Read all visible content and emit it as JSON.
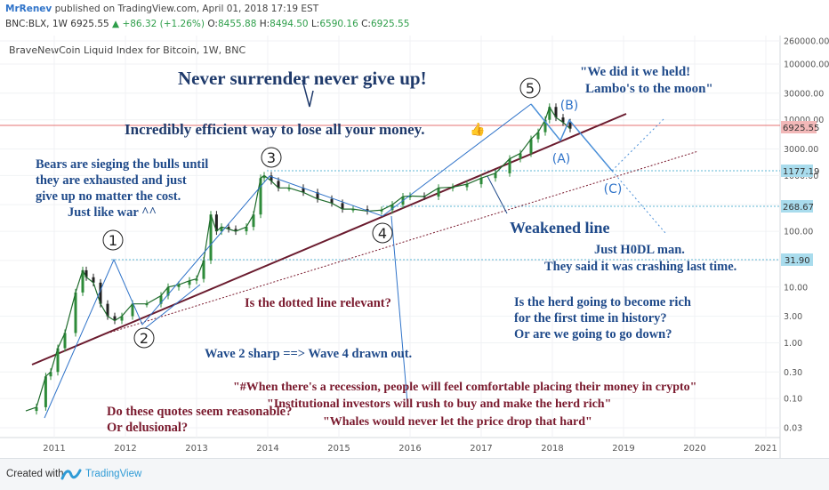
{
  "header": {
    "author": "MrRenev",
    "published_text": "published on TradingView.com, April 01, 2018 17:19 EST",
    "ticker_line": {
      "symbol": "BNC:BLX, 1W",
      "price": "6925.55",
      "change": "+86.32 (+1.26%)",
      "o_label": "O:",
      "o": "8455.88",
      "h_label": "H:",
      "h": "8494.50",
      "l_label": "L:",
      "l": "6590.16",
      "c_label": "C:",
      "c": "6925.55"
    }
  },
  "chart_data": {
    "type": "line",
    "title": "BraveNewCoin Liquid Index for Bitcoin, 1W, BNC",
    "yscale": "log",
    "ylim": [
      0.02,
      260000
    ],
    "y_ticks": [
      "260000.00",
      "100000.00",
      "30000.00",
      "10000.00",
      "3000.00",
      "1000.00",
      "300.00",
      "100.00",
      "30.00",
      "10.00",
      "3.00",
      "1.00",
      "0.30",
      "0.10",
      "0.03"
    ],
    "x_ticks": [
      "2011",
      "2012",
      "2013",
      "2014",
      "2015",
      "2016",
      "2017",
      "2018",
      "2019",
      "2020",
      "2021"
    ],
    "xlim": [
      2010.55,
      2021.2
    ],
    "series": [
      {
        "values_x": [
          2010.6,
          2010.75,
          2010.88,
          2010.95,
          2011.05,
          2011.15,
          2011.3,
          2011.4,
          2011.45,
          2011.55,
          2011.65,
          2011.75,
          2011.85,
          2011.95,
          2012.1,
          2012.3,
          2012.5,
          2012.6,
          2012.75,
          2012.9,
          2013.0,
          2013.1,
          2013.2,
          2013.28,
          2013.35,
          2013.45,
          2013.55,
          2013.7,
          2013.8,
          2013.9,
          2013.95,
          2014.05,
          2014.15,
          2014.3,
          2014.5,
          2014.7,
          2014.9,
          2015.05,
          2015.2,
          2015.4,
          2015.6,
          2015.75,
          2015.9,
          2016.0,
          2016.2,
          2016.4,
          2016.6,
          2016.8,
          2017.0,
          2017.2,
          2017.4,
          2017.55,
          2017.7,
          2017.8,
          2017.9,
          2017.96,
          2018.05,
          2018.15,
          2018.25
        ],
        "values_y": [
          0.06,
          0.07,
          0.25,
          0.3,
          0.8,
          1.5,
          8,
          20,
          15,
          12,
          5,
          3,
          2.5,
          3,
          5,
          5,
          7,
          10,
          11,
          13,
          14,
          30,
          200,
          100,
          120,
          110,
          100,
          120,
          200,
          900,
          1000,
          800,
          600,
          600,
          500,
          380,
          320,
          250,
          250,
          230,
          240,
          300,
          420,
          430,
          420,
          600,
          620,
          700,
          900,
          1100,
          2000,
          2500,
          4500,
          6000,
          10000,
          17000,
          11000,
          9000,
          6925
        ]
      }
    ],
    "price_labels": [
      "6925.55",
      "1177.19",
      "268.67",
      "31.90"
    ],
    "wave_labels": [
      "1",
      "2",
      "3",
      "4",
      "5",
      "(A)",
      "(B)",
      "(C)"
    ],
    "annotations": {
      "headline": "Never surrender never give up!",
      "efficient": "Incredibly efficient way to lose all your money.",
      "held_1": "\"We did it we held!",
      "held_2": "Lambo's to the moon\"",
      "bears_1": "Bears are sieging the bulls until",
      "bears_2": "they are exhausted and just",
      "bears_3": "give up no matter the cost.",
      "bears_4": "Just like war ^^",
      "weakened": "Weakened line",
      "hodl_1": "Just H0DL man.",
      "hodl_2": "They said it was crashing last time.",
      "dotted": "Is the dotted line relevant?",
      "herd_1": "Is the herd going to become rich",
      "herd_2": "for the first time in history?",
      "herd_3": "Or are we going to go down?",
      "wave2": "Wave 2 sharp ==> Wave 4 drawn out.",
      "quote1": "\"#When there's a recession, people will feel comfortable placing their money in crypto\"",
      "quote2": "\"Institutional investors will rush to buy and make the herd rich\"",
      "quote3": "\"Whales would never let the price drop that hard\"",
      "reasonable_1": "Do these quotes seem reasonable?",
      "reasonable_2": "Or delusional?"
    },
    "colors": {
      "candle_up": "#2e8b3a",
      "candle_down": "#222222",
      "trendline": "#6a1b2e",
      "wave_line": "#2f73c9",
      "headline_text": "#1f3a6b",
      "maroon_text": "#7a1a2e",
      "blue_text": "#1f4a8a",
      "price_line": "#e57373"
    }
  },
  "footer": {
    "created_with": "Created with",
    "brand": "TradingView"
  }
}
